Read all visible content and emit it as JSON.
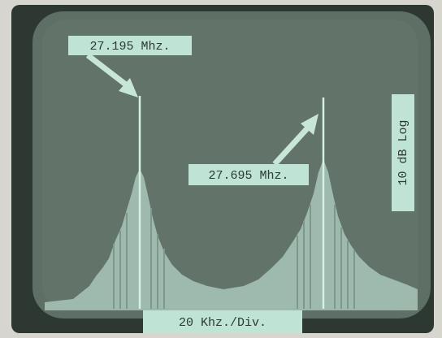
{
  "labels": {
    "left_peak": "27.195 Mhz.",
    "right_peak": "27.695 Mhz.",
    "vertical_scale": "10 dB Log",
    "horizontal_scale": "20 Khz./Div."
  }
}
